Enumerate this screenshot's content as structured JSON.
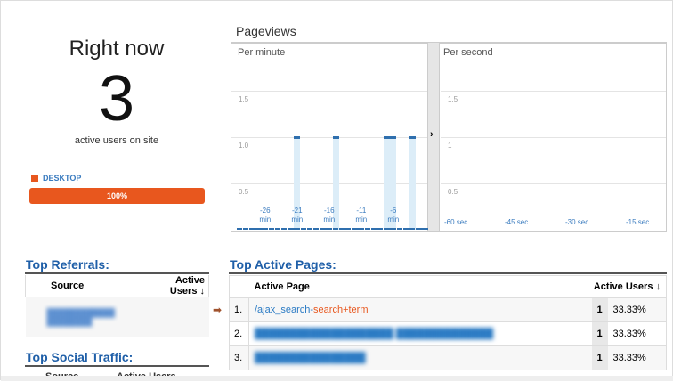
{
  "summary": {
    "title": "Right now",
    "count": "3",
    "subtitle": "active users on site",
    "device_label": "DESKTOP",
    "device_percent": "100%",
    "device_color": "#e8571e"
  },
  "pageviews": {
    "title": "Pageviews",
    "chart_data": [
      {
        "type": "bar",
        "title": "Per minute",
        "x_unit": "min",
        "x": [
          -30,
          -29,
          -28,
          -27,
          -26,
          -25,
          -24,
          -23,
          -22,
          -21,
          -20,
          -19,
          -18,
          -17,
          -16,
          -15,
          -14,
          -13,
          -12,
          -11,
          -10,
          -9,
          -8,
          -7,
          -6,
          -5,
          -4,
          -3,
          -2,
          -1
        ],
        "values": [
          0,
          0,
          0,
          0,
          0,
          0,
          0,
          0,
          0,
          1,
          0,
          0,
          0,
          0,
          0,
          1,
          0,
          0,
          0,
          0,
          0,
          0,
          0,
          1,
          1,
          0,
          0,
          1,
          0,
          0
        ],
        "ytick_labels": [
          "0.5",
          "1.0",
          "1.5"
        ],
        "xtick_labels": [
          [
            "-26",
            "min"
          ],
          [
            "-21",
            "min"
          ],
          [
            "-16",
            "min"
          ],
          [
            "-11",
            "min"
          ],
          [
            "-6",
            "min"
          ]
        ],
        "ylim": [
          0,
          1.5
        ],
        "grid": true,
        "color": "#2f6fae"
      },
      {
        "type": "bar",
        "title": "Per second",
        "ytick_labels": [
          "0.5",
          "1",
          "1.5"
        ],
        "xtick_labels": [
          "-60 sec",
          "-45 sec",
          "-30 sec",
          "-15 sec"
        ],
        "ylim": [
          0,
          1.5
        ],
        "grid": true
      }
    ]
  },
  "referrals": {
    "title": "Top Referrals:",
    "col_source": "Source",
    "col_users": "Active Users ↓",
    "rows": [
      {
        "source": "████████████ ████████"
      }
    ]
  },
  "social": {
    "title": "Top Social Traffic:",
    "col_source": "Source",
    "col_users": "Active Users"
  },
  "pages": {
    "title": "Top Active Pages:",
    "col_page": "Active Page",
    "col_users": "Active Users ↓",
    "rows": [
      {
        "num": "1.",
        "page_prefix": "/ajax_search-",
        "page_term": "search+term",
        "users": "1",
        "pct": "33.33%"
      },
      {
        "num": "2.",
        "page_prefix": "████████████████████ ██████████████",
        "page_term": "",
        "users": "1",
        "pct": "33.33%"
      },
      {
        "num": "3.",
        "page_prefix": "████████████████",
        "page_term": "",
        "users": "1",
        "pct": "33.33%"
      }
    ]
  }
}
